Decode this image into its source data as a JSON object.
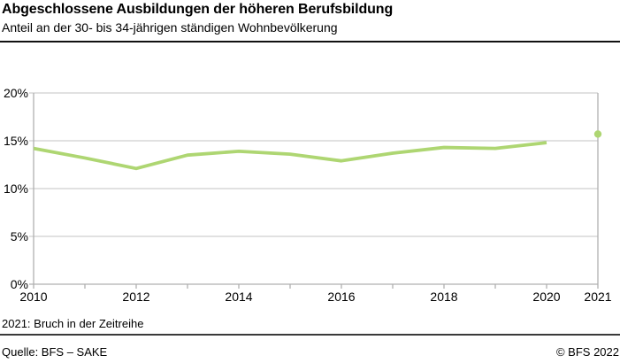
{
  "header": {
    "title": "Abgeschlossene Ausbildungen der höheren Berufsbildung",
    "subtitle": "Anteil an der 30- bis 34-jährigen ständigen Wohnbevölkerung"
  },
  "footer": {
    "note": "2021: Bruch in der Zeitreihe",
    "source": "Quelle: BFS – SAKE",
    "copyright": "© BFS 2022"
  },
  "chart_data": {
    "type": "line",
    "title": "Abgeschlossene Ausbildungen der höheren Berufsbildung",
    "subtitle": "Anteil an der 30- bis 34-jährigen ständigen Wohnbevölkerung",
    "xlabel": "",
    "ylabel": "",
    "x_range": [
      2010,
      2021
    ],
    "ylim": [
      0,
      20
    ],
    "grid": true,
    "legend": "none",
    "x": [
      2010,
      2011,
      2012,
      2013,
      2014,
      2015,
      2016,
      2017,
      2018,
      2019,
      2020
    ],
    "series": [
      {
        "name": "Anteil an der 30- bis 34-jährigen ständigen Wohnbevölkerung",
        "values": [
          14.2,
          13.2,
          12.1,
          13.5,
          13.9,
          13.6,
          12.9,
          13.7,
          14.3,
          14.2,
          14.8
        ]
      }
    ],
    "isolated_point": {
      "x": 2021,
      "value": 15.7,
      "reason": "Bruch in der Zeitreihe"
    },
    "x_ticks": [
      {
        "value": 2010,
        "label": "2010"
      },
      {
        "value": 2012,
        "label": "2012"
      },
      {
        "value": 2014,
        "label": "2014"
      },
      {
        "value": 2016,
        "label": "2016"
      },
      {
        "value": 2018,
        "label": "2018"
      },
      {
        "value": 2020,
        "label": "2020"
      },
      {
        "value": 2021,
        "label": "2021"
      }
    ],
    "y_ticks": [
      {
        "value": 0,
        "label": "0%"
      },
      {
        "value": 5,
        "label": "5%"
      },
      {
        "value": 10,
        "label": "10%"
      },
      {
        "value": 15,
        "label": "15%"
      },
      {
        "value": 20,
        "label": "20%"
      }
    ],
    "line_color": "#aed672",
    "grid_color": "#c3c3c3",
    "axis_color": "#b0b0b0",
    "text_color": "#000000"
  }
}
